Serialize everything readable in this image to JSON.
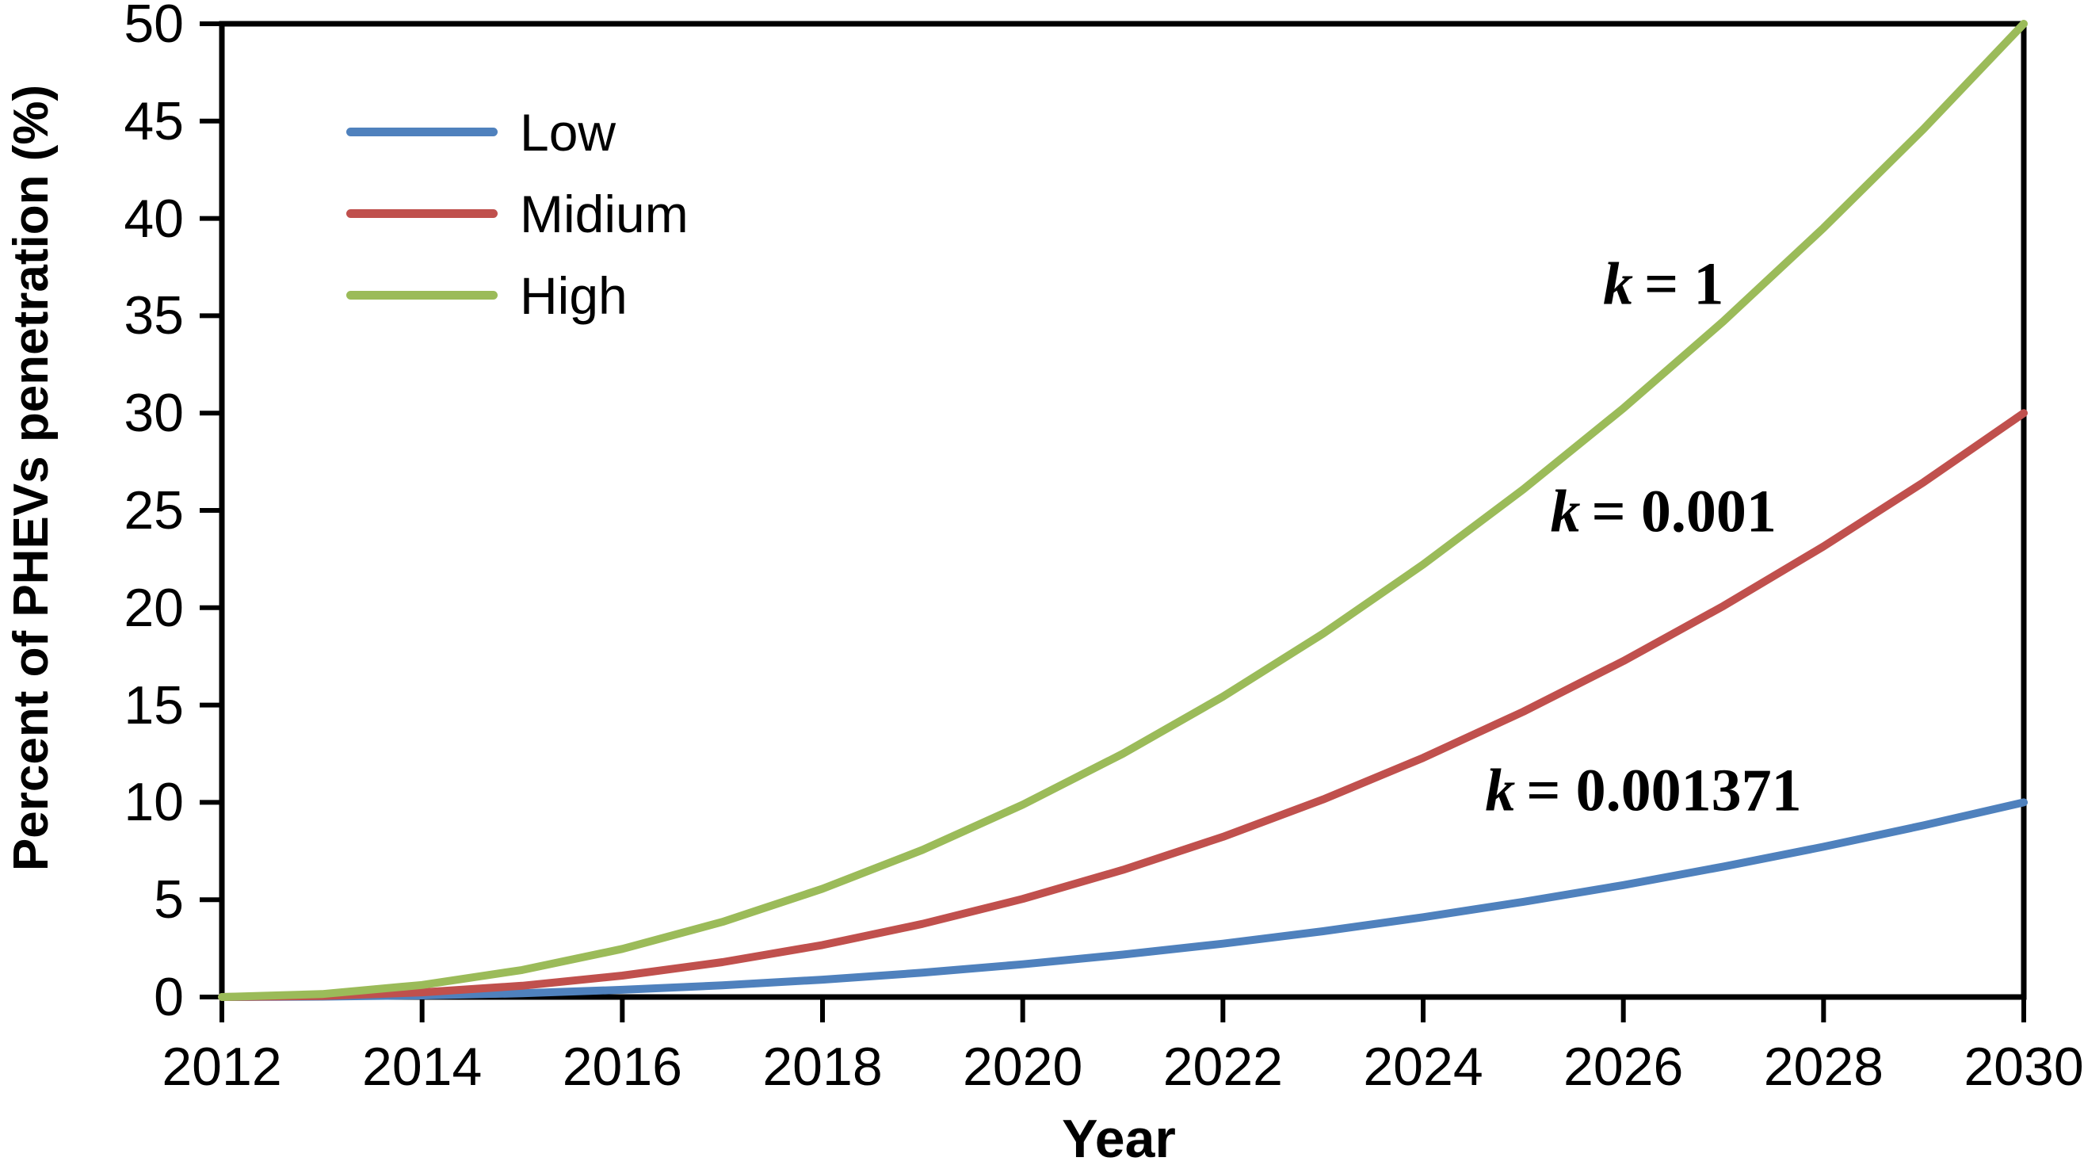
{
  "chart_data": {
    "type": "line",
    "title": "",
    "xlabel": "Year",
    "ylabel": "Percent of PHEVs penetration (%)",
    "xlim": [
      2012,
      2030
    ],
    "ylim": [
      0,
      50
    ],
    "xticks": [
      2012,
      2014,
      2016,
      2018,
      2020,
      2022,
      2024,
      2026,
      2028,
      2030
    ],
    "yticks": [
      0,
      5,
      10,
      15,
      20,
      25,
      30,
      35,
      40,
      45,
      50
    ],
    "grid": false,
    "plot_border": "full-box",
    "axis_color": "#000000",
    "legend_position": "upper-left-inside",
    "x": [
      2012,
      2013,
      2014,
      2015,
      2016,
      2017,
      2018,
      2019,
      2020,
      2021,
      2022,
      2023,
      2024,
      2025,
      2026,
      2027,
      2028,
      2029,
      2030
    ],
    "series": [
      {
        "name": "Low",
        "color": "#4F81BD",
        "k": "0.001371",
        "values": [
          0,
          0.02,
          0.08,
          0.19,
          0.37,
          0.6,
          0.89,
          1.25,
          1.68,
          2.18,
          2.74,
          3.38,
          4.1,
          4.89,
          5.75,
          6.7,
          7.72,
          8.82,
          10
        ]
      },
      {
        "name": "Midium",
        "color": "#C0504D",
        "k": "0.001",
        "values": [
          0,
          0.05,
          0.24,
          0.58,
          1.1,
          1.79,
          2.67,
          3.76,
          5.04,
          6.53,
          8.23,
          10.15,
          12.29,
          14.66,
          17.26,
          20.09,
          23.15,
          26.45,
          30
        ]
      },
      {
        "name": "High",
        "color": "#9BBB59",
        "k": "1",
        "values": [
          0,
          0.15,
          0.62,
          1.39,
          2.47,
          3.86,
          5.56,
          7.56,
          9.88,
          12.5,
          15.43,
          18.67,
          22.22,
          26.08,
          30.25,
          34.72,
          39.51,
          44.6,
          50
        ]
      }
    ],
    "annotations": [
      {
        "k": "k",
        "eq": "= 1",
        "x": 2026.4,
        "y": 36.6
      },
      {
        "k": "k",
        "eq": "= 0.001",
        "x": 2026.4,
        "y": 24.9
      },
      {
        "k": "k",
        "eq": "= 0.001371",
        "x": 2026.2,
        "y": 10.6
      }
    ]
  }
}
